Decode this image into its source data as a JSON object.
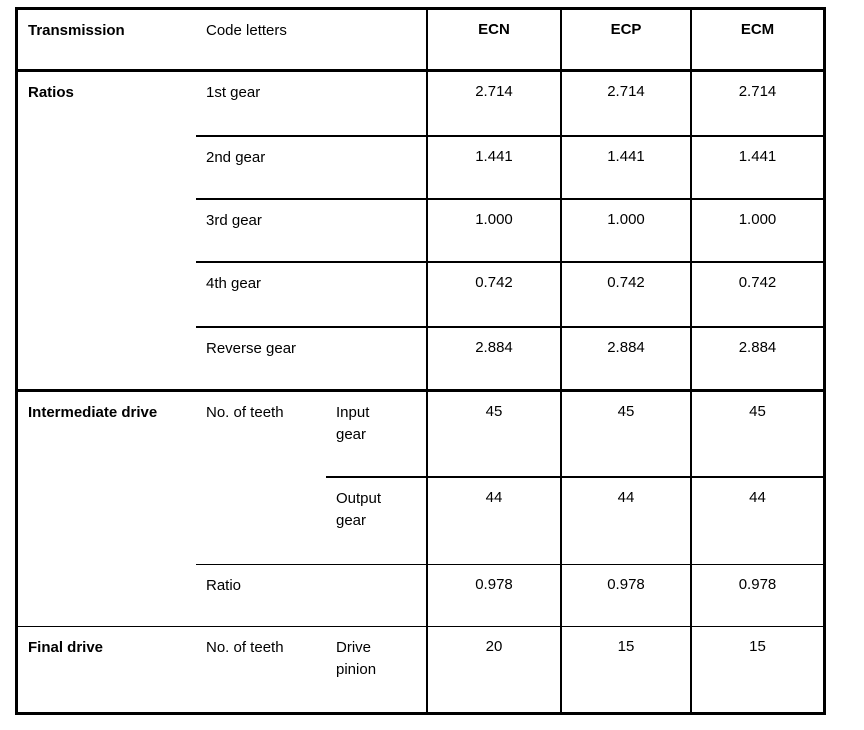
{
  "table": {
    "header": {
      "transmission": "Transmission",
      "code_letters": "Code letters",
      "codes": [
        "ECN",
        "ECP",
        "ECM"
      ]
    },
    "sections": [
      {
        "label": "Ratios",
        "rows": [
          {
            "name": "1st gear",
            "values": [
              "2.714",
              "2.714",
              "2.714"
            ]
          },
          {
            "name": "2nd gear",
            "values": [
              "1.441",
              "1.441",
              "1.441"
            ]
          },
          {
            "name": "3rd gear",
            "values": [
              "1.000",
              "1.000",
              "1.000"
            ]
          },
          {
            "name": "4th gear",
            "values": [
              "0.742",
              "0.742",
              "0.742"
            ]
          },
          {
            "name": "Reverse gear",
            "values": [
              "2.884",
              "2.884",
              "2.884"
            ]
          }
        ]
      },
      {
        "label": "Intermediate drive",
        "rows": [
          {
            "name": "No. of teeth",
            "sub": "Input gear",
            "values": [
              "45",
              "45",
              "45"
            ]
          },
          {
            "name": "",
            "sub": "Output gear",
            "values": [
              "44",
              "44",
              "44"
            ]
          },
          {
            "name": "Ratio",
            "sub": "",
            "values": [
              "0.978",
              "0.978",
              "0.978"
            ]
          }
        ]
      },
      {
        "label": "Final drive",
        "rows": [
          {
            "name": "No. of teeth",
            "sub": "Drive pinion",
            "values": [
              "20",
              "15",
              "15"
            ]
          }
        ]
      }
    ]
  }
}
